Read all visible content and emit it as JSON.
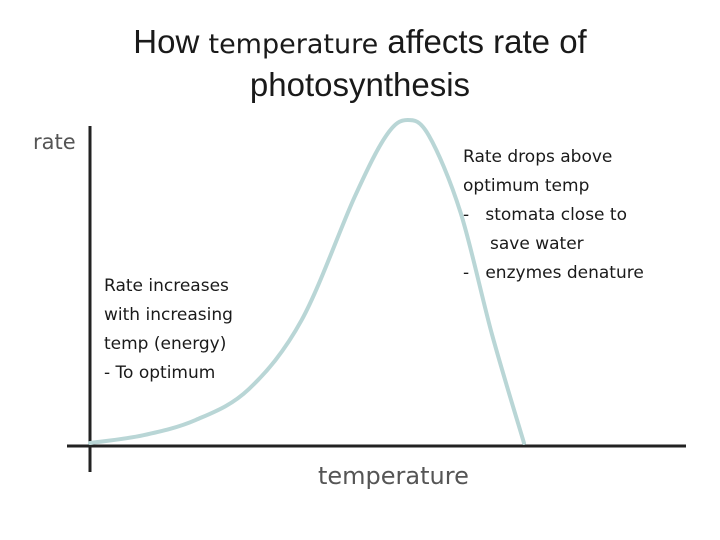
{
  "title": {
    "before": "How",
    "middle": "temperature",
    "after": "affects rate of",
    "line2": "photosynthesis"
  },
  "chart_data": {
    "type": "line",
    "title": "How temperature affects rate of photosynthesis",
    "xlabel": "temperature",
    "ylabel": "rate",
    "series": [
      {
        "color": "#b9d6d6",
        "x": [
          0,
          5,
          10,
          15,
          20,
          25,
          28,
          30,
          32,
          35,
          38,
          41
        ],
        "y": [
          0,
          1,
          3,
          7,
          16,
          32,
          40,
          42,
          40,
          30,
          14,
          0
        ]
      }
    ],
    "annotations": [
      {
        "name": "increase",
        "lines": [
          "Rate increases",
          "with increasing",
          "temp (energy)",
          "- To optimum"
        ]
      },
      {
        "name": "drop",
        "lines": [
          "Rate drops above",
          "optimum temp",
          "-   stomata close to",
          "     save water",
          "-   enzymes denature"
        ]
      }
    ],
    "grid": false,
    "legend": "none"
  }
}
